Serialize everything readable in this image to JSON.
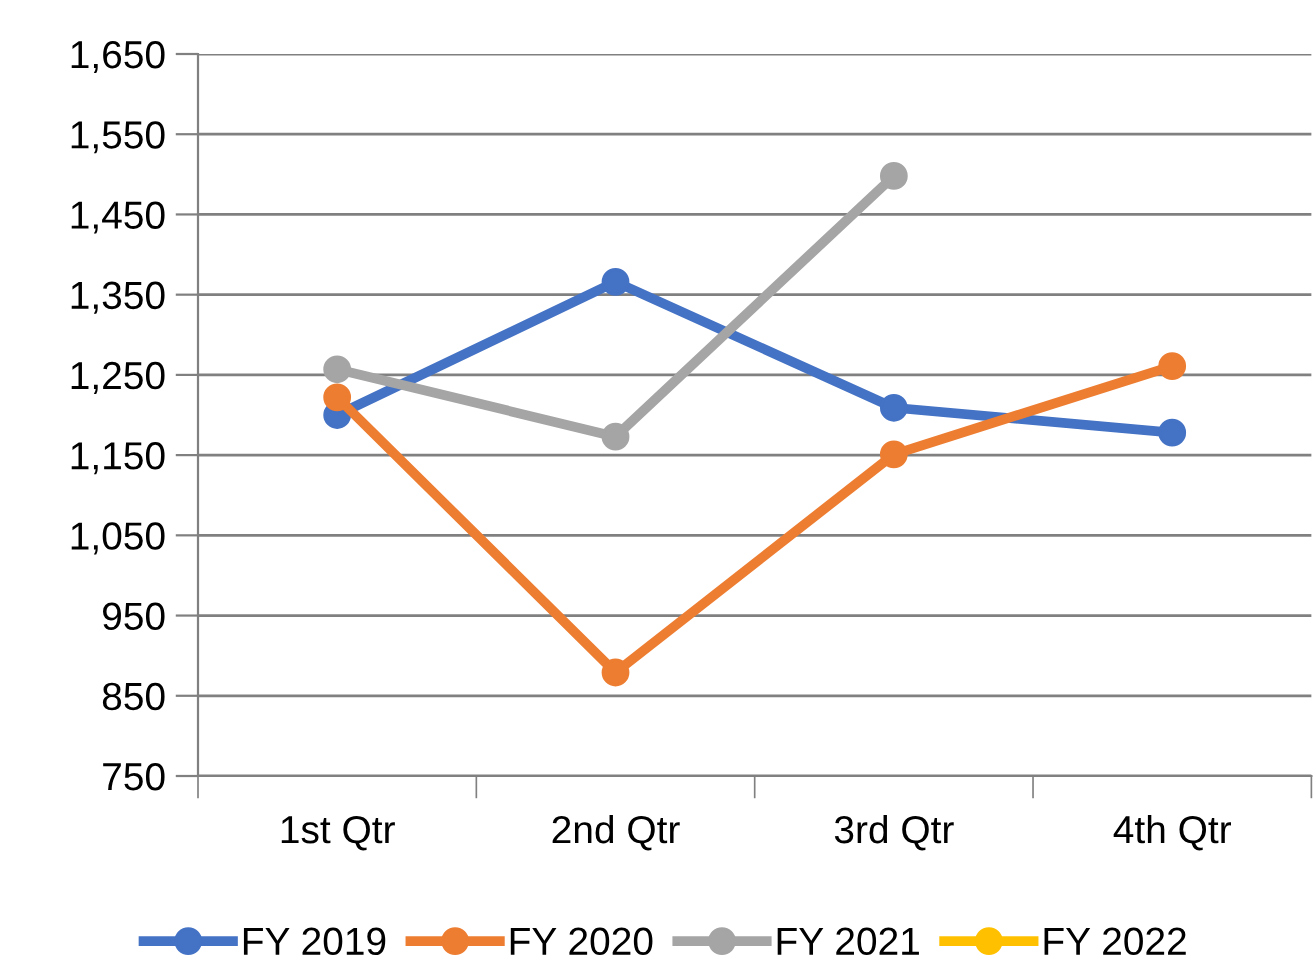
{
  "chart_data": {
    "type": "line",
    "categories": [
      "1st Qtr",
      "2nd Qtr",
      "3rd Qtr",
      "4th Qtr"
    ],
    "series": [
      {
        "name": "FY 2019",
        "color": "#4472c4",
        "values": [
          1200,
          1366,
          1209,
          1178
        ]
      },
      {
        "name": "FY 2020",
        "color": "#ed7d31",
        "values": [
          1222,
          879,
          1151,
          1261
        ]
      },
      {
        "name": "FY 2021",
        "color": "#a5a5a5",
        "values": [
          1257,
          1173,
          1498,
          null
        ]
      },
      {
        "name": "FY 2022",
        "color": "#ffc000",
        "values": [
          null,
          null,
          null,
          null
        ]
      }
    ],
    "ylim": [
      750,
      1650
    ],
    "yticks": [
      {
        "value": 750,
        "label": "750"
      },
      {
        "value": 850,
        "label": "850"
      },
      {
        "value": 950,
        "label": "950"
      },
      {
        "value": 1050,
        "label": "1,050"
      },
      {
        "value": 1150,
        "label": "1,150"
      },
      {
        "value": 1250,
        "label": "1,250"
      },
      {
        "value": 1350,
        "label": "1,350"
      },
      {
        "value": 1450,
        "label": "1,450"
      },
      {
        "value": 1550,
        "label": "1,550"
      },
      {
        "value": 1650,
        "label": "1,650"
      }
    ],
    "grid": "y",
    "legend": "bottom",
    "marker": "circle",
    "line_style": "solid"
  }
}
